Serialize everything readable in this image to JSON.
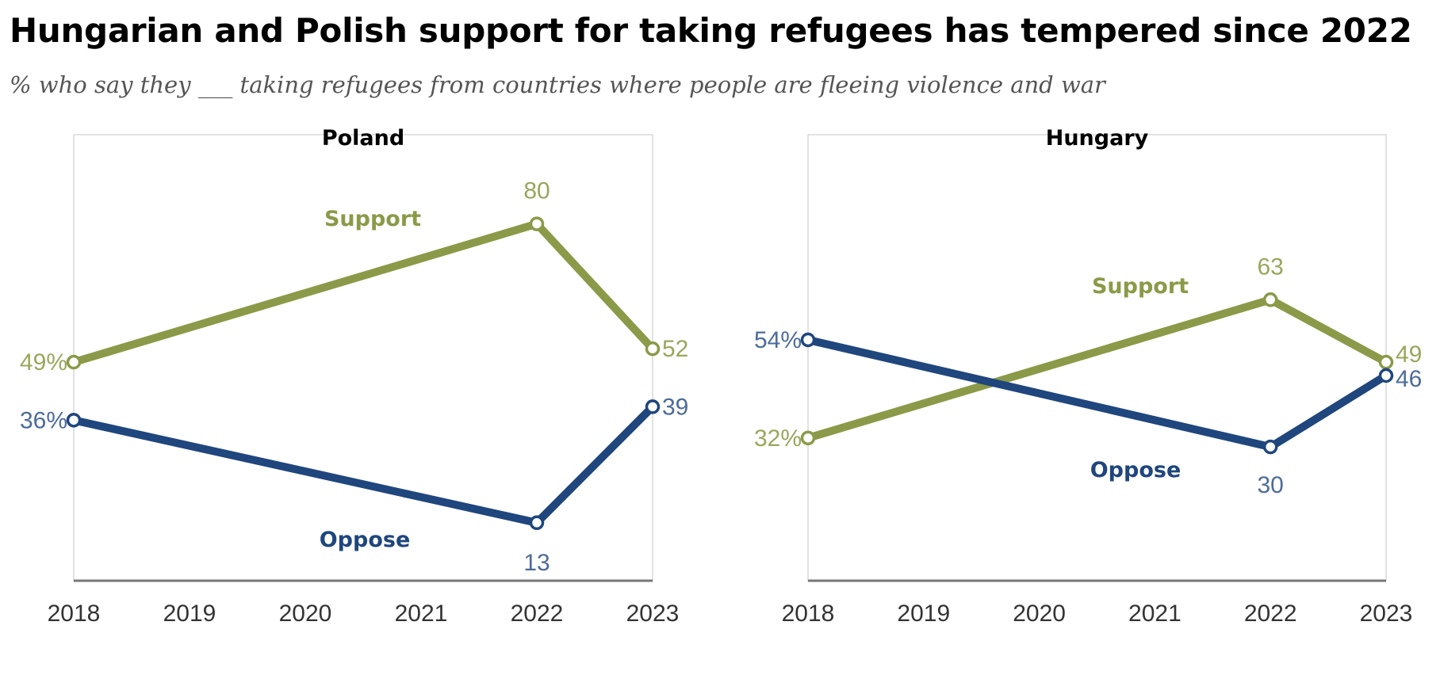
{
  "title": "Hungarian and Polish support for taking refugees has tempered since 2022",
  "subtitle": "% who say they ___ taking refugees from countries where people are fleeing violence and war",
  "colors": {
    "support": "#8a9a48",
    "support_label": "#9aa65c",
    "oppose": "#1f467d",
    "oppose_label": "#4d6b9a",
    "frame": "#d8d8d8",
    "axis": "#777777"
  },
  "chart_data": [
    {
      "type": "line",
      "title": "Poland",
      "x_categories": [
        "2018",
        "2019",
        "2020",
        "2021",
        "2022",
        "2023"
      ],
      "ylim": [
        0,
        100
      ],
      "series": [
        {
          "name": "Support",
          "key": "support",
          "points": [
            {
              "x": 2018,
              "y": 49,
              "label": "49%"
            },
            {
              "x": 2022,
              "y": 80,
              "label": "80"
            },
            {
              "x": 2023,
              "y": 52,
              "label": "52"
            }
          ]
        },
        {
          "name": "Oppose",
          "key": "oppose",
          "points": [
            {
              "x": 2018,
              "y": 36,
              "label": "36%"
            },
            {
              "x": 2022,
              "y": 13,
              "label": "13"
            },
            {
              "x": 2023,
              "y": 39,
              "label": "39"
            }
          ]
        }
      ]
    },
    {
      "type": "line",
      "title": "Hungary",
      "x_categories": [
        "2018",
        "2019",
        "2020",
        "2021",
        "2022",
        "2023"
      ],
      "ylim": [
        0,
        100
      ],
      "series": [
        {
          "name": "Support",
          "key": "support",
          "points": [
            {
              "x": 2018,
              "y": 32,
              "label": "32%"
            },
            {
              "x": 2022,
              "y": 63,
              "label": "63"
            },
            {
              "x": 2023,
              "y": 49,
              "label": "49"
            }
          ]
        },
        {
          "name": "Oppose",
          "key": "oppose",
          "points": [
            {
              "x": 2018,
              "y": 54,
              "label": "54%"
            },
            {
              "x": 2022,
              "y": 30,
              "label": "30"
            },
            {
              "x": 2023,
              "y": 46,
              "label": "46"
            }
          ]
        }
      ]
    }
  ]
}
